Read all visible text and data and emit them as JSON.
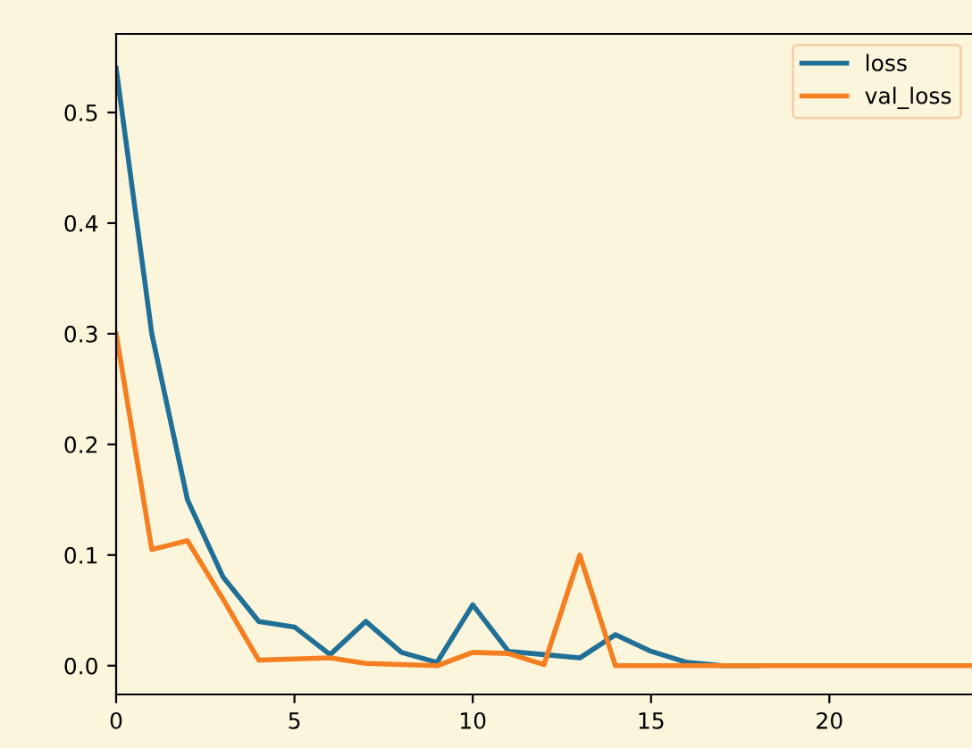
{
  "chart_data": {
    "type": "line",
    "x": [
      0,
      1,
      2,
      3,
      4,
      5,
      6,
      7,
      8,
      9,
      10,
      11,
      12,
      13,
      14,
      15,
      16,
      17,
      18,
      19,
      20,
      21,
      22,
      23,
      24
    ],
    "series": [
      {
        "name": "loss",
        "color": "#1f6f96",
        "values": [
          0.54,
          0.3,
          0.15,
          0.08,
          0.04,
          0.035,
          0.01,
          0.04,
          0.012,
          0.003,
          0.055,
          0.013,
          0.01,
          0.007,
          0.028,
          0.013,
          0.003,
          0.0,
          0.0,
          null,
          null,
          null,
          null,
          null,
          null
        ]
      },
      {
        "name": "val_loss",
        "color": "#f57f20",
        "values": [
          0.3,
          0.105,
          0.113,
          0.06,
          0.005,
          0.006,
          0.007,
          0.002,
          0.001,
          0.0,
          0.012,
          0.011,
          0.001,
          0.1,
          0.0,
          0.0,
          0.0,
          0.0,
          0.0,
          0.0,
          0.0,
          0.0,
          0.0,
          0.0,
          0.0
        ]
      }
    ],
    "xlim": [
      0,
      24
    ],
    "ylim": [
      -0.026,
      0.571
    ],
    "xticks": [
      0,
      5,
      10,
      15,
      20
    ],
    "yticks": [
      {
        "value": 0,
        "label": "0.0"
      },
      0.1,
      0.2,
      0.3,
      0.4,
      0.5
    ],
    "legend": "top right",
    "grid": false,
    "marker": "none",
    "line_style": "solid"
  }
}
